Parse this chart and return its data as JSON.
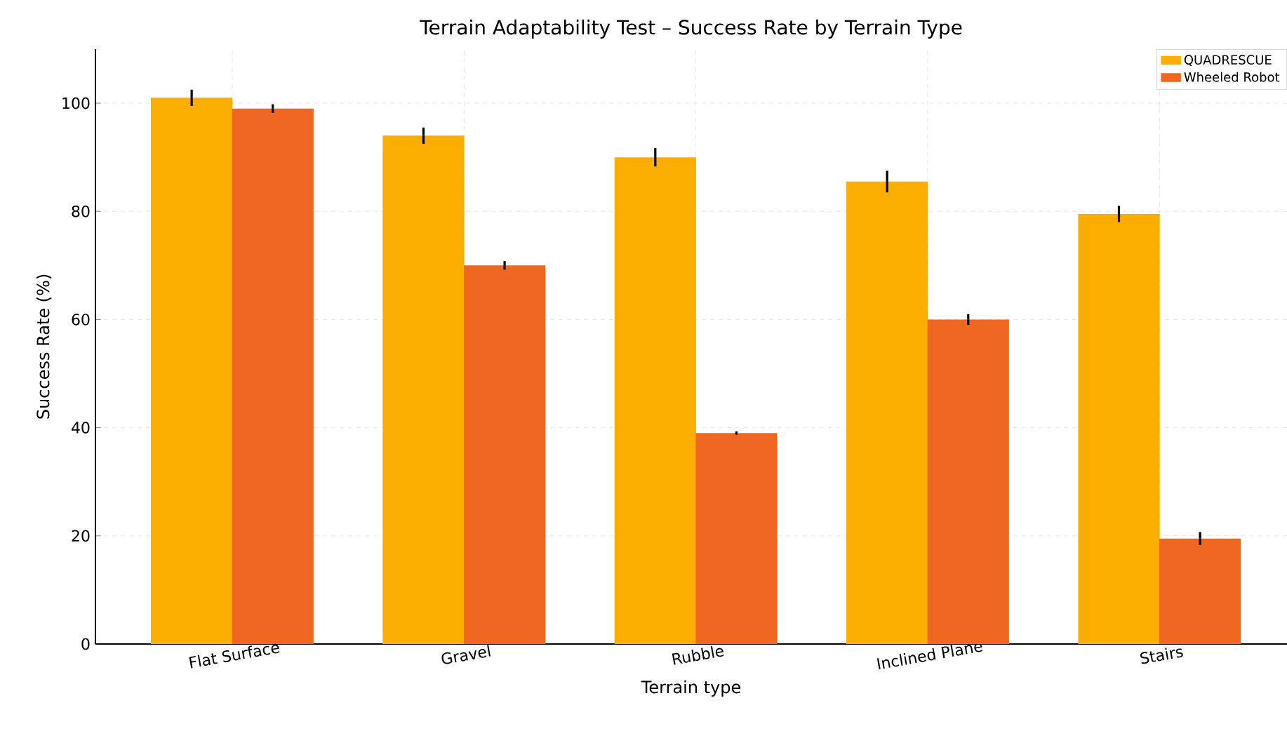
{
  "chart_data": {
    "type": "bar",
    "title": "Terrain Adaptability Test – Success Rate by Terrain Type",
    "xlabel": "Terrain type",
    "ylabel": "Success Rate (%)",
    "categories": [
      "Flat Surface",
      "Gravel",
      "Rubble",
      "Inclined Plane",
      "Stairs"
    ],
    "series": [
      {
        "name": "QUADRESCUE",
        "color": "#fbae00",
        "values": [
          101,
          94,
          90,
          85.5,
          79.5
        ],
        "errors": [
          1.5,
          1.5,
          1.7,
          2,
          1.5
        ]
      },
      {
        "name": "Wheeled Robot",
        "color": "#f06722",
        "values": [
          99,
          70,
          39,
          60,
          19.5
        ],
        "errors": [
          0.8,
          0.8,
          0.3,
          1,
          1.2
        ]
      }
    ],
    "ylim": [
      0,
      110
    ],
    "yticks": [
      0,
      20,
      40,
      60,
      80,
      100
    ],
    "grid": true,
    "legend": "top right"
  }
}
